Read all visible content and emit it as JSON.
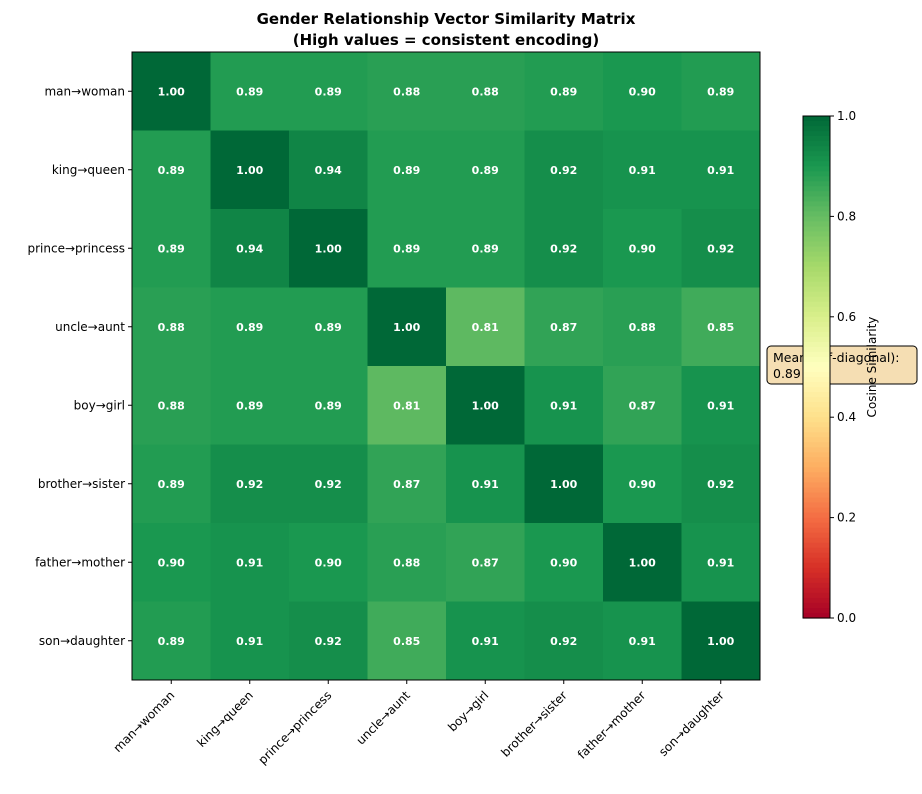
{
  "chart_data": {
    "type": "heatmap",
    "title": "Gender Relationship Vector Similarity Matrix",
    "subtitle": "(High values = consistent encoding)",
    "labels": [
      "man→woman",
      "king→queen",
      "prince→princess",
      "uncle→aunt",
      "boy→girl",
      "brother→sister",
      "father→mother",
      "son→daughter"
    ],
    "values": [
      [
        1.0,
        0.89,
        0.89,
        0.88,
        0.88,
        0.89,
        0.9,
        0.89
      ],
      [
        0.89,
        1.0,
        0.94,
        0.89,
        0.89,
        0.92,
        0.91,
        0.91
      ],
      [
        0.89,
        0.94,
        1.0,
        0.89,
        0.89,
        0.92,
        0.9,
        0.92
      ],
      [
        0.88,
        0.89,
        0.89,
        1.0,
        0.81,
        0.87,
        0.88,
        0.85
      ],
      [
        0.88,
        0.89,
        0.89,
        0.81,
        1.0,
        0.91,
        0.87,
        0.91
      ],
      [
        0.89,
        0.92,
        0.92,
        0.87,
        0.91,
        1.0,
        0.9,
        0.92
      ],
      [
        0.9,
        0.91,
        0.9,
        0.88,
        0.87,
        0.9,
        1.0,
        0.91
      ],
      [
        0.89,
        0.91,
        0.92,
        0.85,
        0.91,
        0.92,
        0.91,
        1.0
      ]
    ],
    "colormap": "RdYlGn",
    "vmin": 0.0,
    "vmax": 1.0,
    "colorbar_label": "Cosine Similarity",
    "colorbar_ticks": [
      "0.0",
      "0.2",
      "0.4",
      "0.6",
      "0.8",
      "1.0"
    ],
    "annotation": [
      "Mean (off-diagonal):",
      "0.89"
    ]
  }
}
